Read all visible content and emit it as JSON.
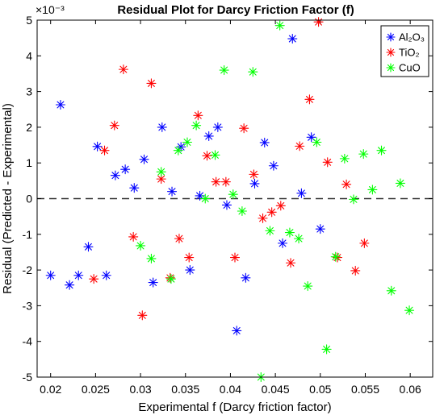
{
  "chart_data": {
    "type": "scatter",
    "title": "Residual Plot for Darcy Friction Factor (f)",
    "xlabel": "Experimental f (Darcy friction factor)",
    "ylabel": "Residual (Predicted - Experimental)",
    "exponent_label": "×10⁻³",
    "xlim": [
      0.0185,
      0.0625
    ],
    "ylim": [
      -5,
      5
    ],
    "xticks": [
      0.02,
      0.025,
      0.03,
      0.035,
      0.04,
      0.045,
      0.05,
      0.055,
      0.06
    ],
    "xtick_labels": [
      "0.02",
      "0.025",
      "0.03",
      "0.035",
      "0.04",
      "0.045",
      "0.05",
      "0.055",
      "0.06"
    ],
    "yticks": [
      -5,
      -4,
      -3,
      -2,
      -1,
      0,
      1,
      2,
      3,
      4,
      5
    ],
    "ytick_labels": [
      "-5",
      "-4",
      "-3",
      "-2",
      "-1",
      "0",
      "1",
      "2",
      "3",
      "4",
      "5"
    ],
    "grid": false,
    "zero_reference_line": true,
    "legend_position": "top-right",
    "series": [
      {
        "name": "Al₂O₃",
        "color": "#0000ff",
        "marker": "asterisk",
        "points": [
          [
            0.02,
            -2.15
          ],
          [
            0.0211,
            2.63
          ],
          [
            0.0221,
            -2.42
          ],
          [
            0.0231,
            -2.15
          ],
          [
            0.0242,
            -1.35
          ],
          [
            0.0252,
            1.46
          ],
          [
            0.0262,
            -2.15
          ],
          [
            0.0272,
            0.65
          ],
          [
            0.0283,
            0.82
          ],
          [
            0.0293,
            0.3
          ],
          [
            0.0304,
            1.1
          ],
          [
            0.0314,
            -2.35
          ],
          [
            0.0324,
            2.0
          ],
          [
            0.0335,
            0.2
          ],
          [
            0.0345,
            1.45
          ],
          [
            0.0355,
            -2.0
          ],
          [
            0.0366,
            0.08
          ],
          [
            0.0376,
            1.75
          ],
          [
            0.0386,
            2.0
          ],
          [
            0.0396,
            -0.18
          ],
          [
            0.0407,
            -3.7
          ],
          [
            0.0417,
            -2.22
          ],
          [
            0.0427,
            0.42
          ],
          [
            0.0438,
            1.57
          ],
          [
            0.0448,
            0.92
          ],
          [
            0.0458,
            -1.25
          ],
          [
            0.0469,
            4.48
          ],
          [
            0.0479,
            0.15
          ],
          [
            0.049,
            1.72
          ],
          [
            0.05,
            -0.85
          ]
        ]
      },
      {
        "name": "TiO₂",
        "color": "#ff0000",
        "marker": "asterisk",
        "points": [
          [
            0.0248,
            -2.25
          ],
          [
            0.026,
            1.35
          ],
          [
            0.0271,
            2.05
          ],
          [
            0.0281,
            3.62
          ],
          [
            0.0292,
            -1.07
          ],
          [
            0.0302,
            -3.27
          ],
          [
            0.0312,
            3.23
          ],
          [
            0.0323,
            0.55
          ],
          [
            0.0333,
            -2.22
          ],
          [
            0.0343,
            -1.12
          ],
          [
            0.0354,
            -1.65
          ],
          [
            0.0364,
            2.33
          ],
          [
            0.0374,
            1.2
          ],
          [
            0.0384,
            0.47
          ],
          [
            0.0395,
            0.47
          ],
          [
            0.0405,
            -1.65
          ],
          [
            0.0415,
            1.97
          ],
          [
            0.0426,
            0.68
          ],
          [
            0.0436,
            -0.55
          ],
          [
            0.0446,
            -0.38
          ],
          [
            0.0456,
            -0.2
          ],
          [
            0.0467,
            -1.8
          ],
          [
            0.0477,
            1.47
          ],
          [
            0.0488,
            2.78
          ],
          [
            0.0498,
            4.95
          ],
          [
            0.0508,
            1.02
          ],
          [
            0.0519,
            -1.65
          ],
          [
            0.0529,
            0.4
          ],
          [
            0.0539,
            -2.02
          ],
          [
            0.0549,
            -1.25
          ]
        ]
      },
      {
        "name": "CuO",
        "color": "#00ff00",
        "marker": "asterisk",
        "points": [
          [
            0.03,
            -1.32
          ],
          [
            0.0312,
            -1.68
          ],
          [
            0.0323,
            0.75
          ],
          [
            0.0334,
            -2.25
          ],
          [
            0.0342,
            1.35
          ],
          [
            0.0352,
            1.58
          ],
          [
            0.0362,
            2.05
          ],
          [
            0.0372,
            0.0
          ],
          [
            0.0383,
            1.22
          ],
          [
            0.0393,
            3.6
          ],
          [
            0.0403,
            0.12
          ],
          [
            0.0413,
            -0.35
          ],
          [
            0.0425,
            3.55
          ],
          [
            0.0434,
            -5.0
          ],
          [
            0.0444,
            -0.9
          ],
          [
            0.0455,
            4.85
          ],
          [
            0.0466,
            -0.95
          ],
          [
            0.0476,
            -1.12
          ],
          [
            0.0486,
            -2.45
          ],
          [
            0.0496,
            1.58
          ],
          [
            0.0507,
            -4.22
          ],
          [
            0.0517,
            -1.63
          ],
          [
            0.0527,
            1.12
          ],
          [
            0.0537,
            -0.02
          ],
          [
            0.0548,
            1.25
          ],
          [
            0.0558,
            0.25
          ],
          [
            0.0568,
            1.35
          ],
          [
            0.0579,
            -2.58
          ],
          [
            0.0589,
            0.43
          ],
          [
            0.0599,
            -3.13
          ]
        ]
      }
    ]
  }
}
